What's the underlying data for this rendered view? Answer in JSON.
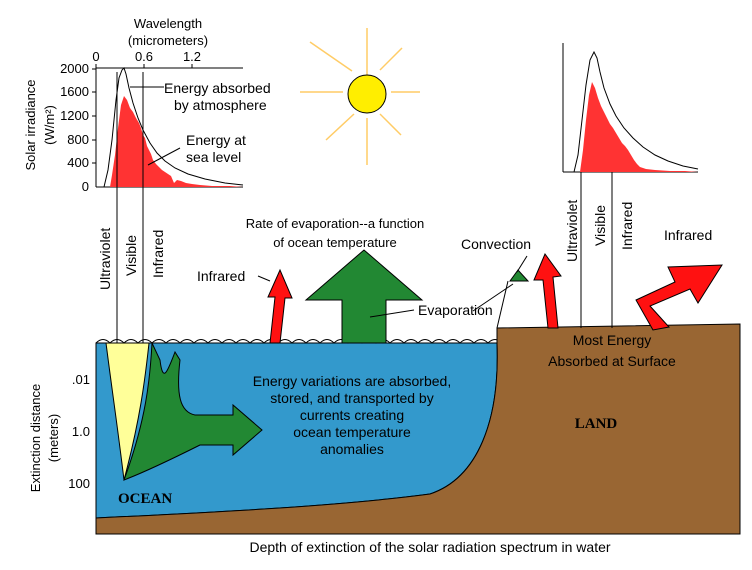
{
  "colors": {
    "sun": "#ffee00",
    "sun_rays": "#ffcc66",
    "ocean": "#3399cc",
    "land": "#996633",
    "green_arrow": "#228833",
    "red_arrow": "#ff1111",
    "visible_band": "#ffff99",
    "spectrum_fill": "#ff3333"
  },
  "irradiance_chart": {
    "top_axis_title_line1": "Wavelength",
    "top_axis_title_line2": "(micrometers)",
    "top_ticks": [
      "0",
      "0.6",
      "1.2"
    ],
    "y_axis_title_line1": "Solar irradiance",
    "y_axis_title_line2": "(W/m²)",
    "y_ticks": [
      "2000",
      "1600",
      "1200",
      "800",
      "400",
      "0"
    ],
    "label_absorbed_line1": "Energy absorbed",
    "label_absorbed_line2": "by atmosphere",
    "label_sea_level_line1": "Energy at",
    "label_sea_level_line2": "sea level"
  },
  "spectrum_bands": {
    "ocean": [
      "Ultraviolet",
      "Visible",
      "Infrared"
    ],
    "land": [
      "Ultraviolet",
      "Visible",
      "Infrared"
    ]
  },
  "flows": {
    "evaporation_rate_line1": "Rate of evaporation--a function",
    "evaporation_rate_line2": "of ocean temperature",
    "infrared_ocean": "Infrared",
    "evaporation": "Evaporation",
    "convection": "Convection",
    "infrared_land": "Infrared"
  },
  "surfaces": {
    "land_note_line1": "Most Energy",
    "land_note_line2": "Absorbed at Surface",
    "land_name": "LAND",
    "ocean_name": "OCEAN",
    "ocean_note": [
      "Energy variations are absorbed,",
      "stored, and transported by",
      "currents creating",
      "ocean temperature",
      "anomalies"
    ]
  },
  "extinction_axis": {
    "title_line1": "Extinction distance",
    "title_line2": "(meters)",
    "ticks": [
      ".01",
      "1.0",
      "100"
    ]
  },
  "caption": "Depth of extinction of the solar radiation spectrum in water"
}
